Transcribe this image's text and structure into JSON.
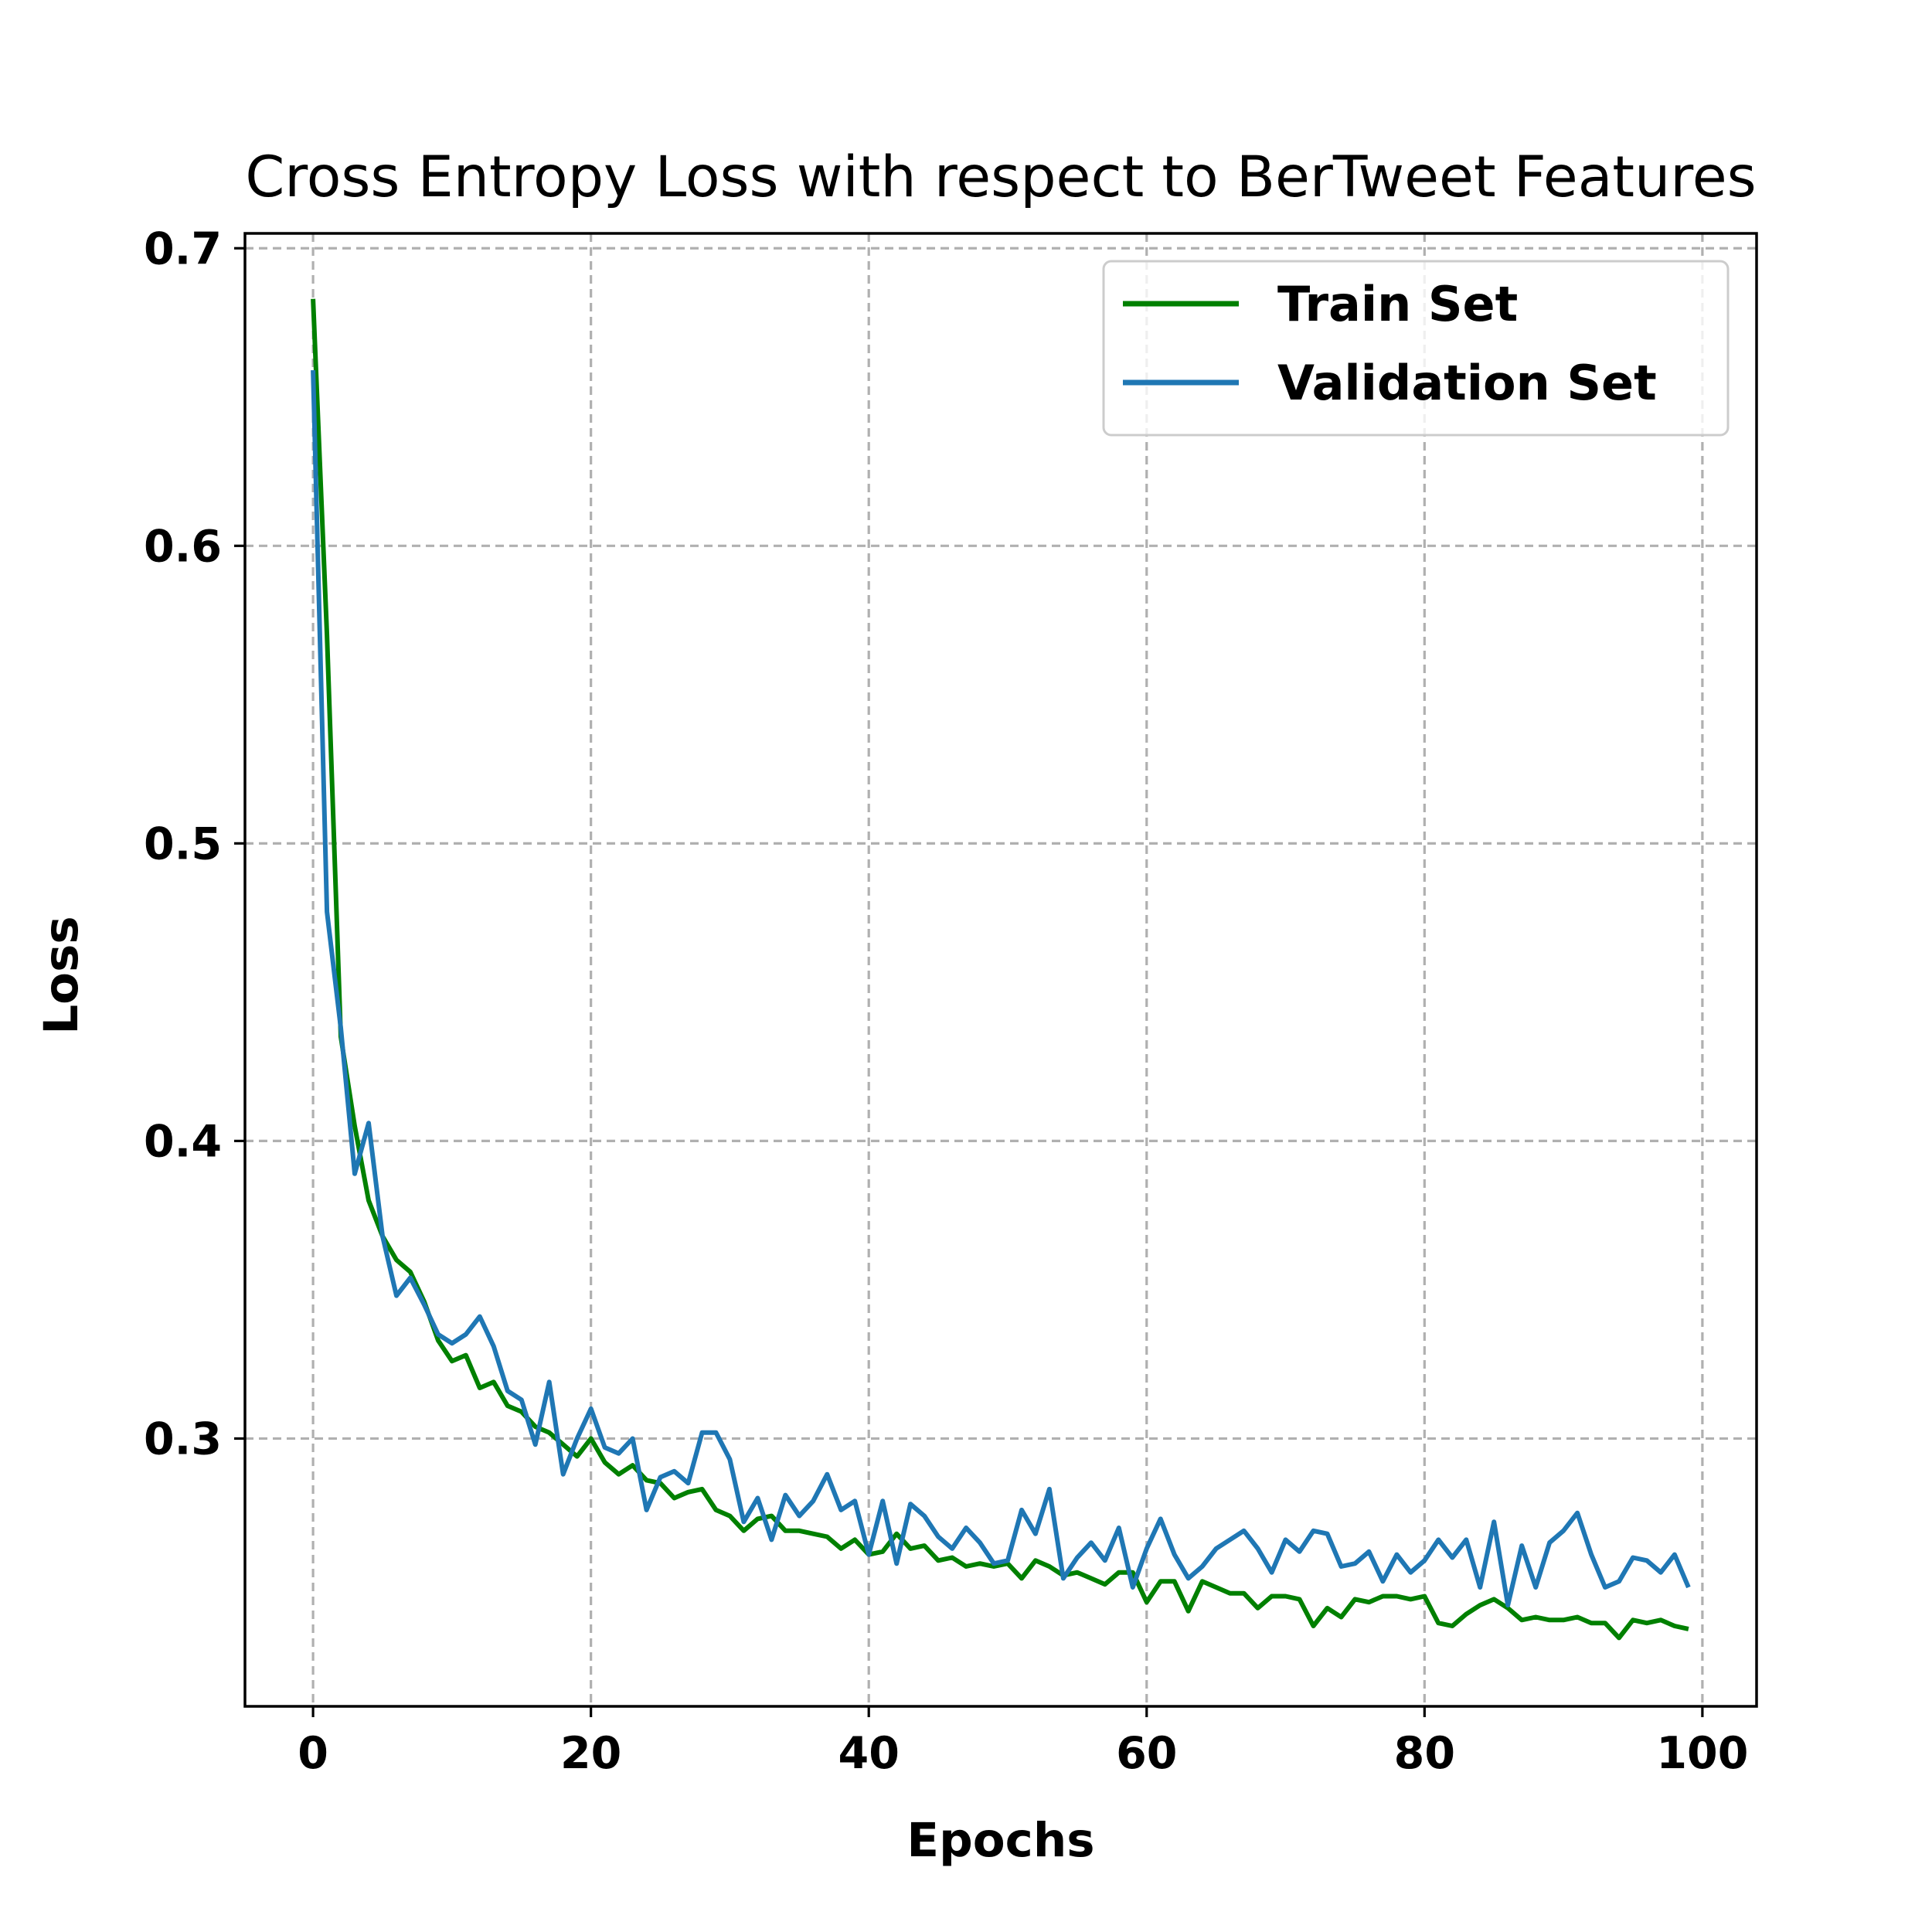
{
  "chart_data": {
    "type": "line",
    "title": "Cross Entropy Loss with respect to BerTweet Features",
    "xlabel": "Epochs",
    "ylabel": "Loss",
    "xlim": [
      -4.9,
      103.9
    ],
    "ylim": [
      0.21,
      0.705
    ],
    "xticks": [
      0,
      20,
      40,
      60,
      80,
      100
    ],
    "yticks": [
      0.3,
      0.4,
      0.5,
      0.6,
      0.7
    ],
    "xtick_labels": [
      "0",
      "20",
      "40",
      "60",
      "80",
      "100"
    ],
    "ytick_labels": [
      "0.3",
      "0.4",
      "0.5",
      "0.6",
      "0.7"
    ],
    "grid": true,
    "legend_position": "top-right",
    "series": [
      {
        "name": "Train Set",
        "color": "#008000",
        "values": [
          0.683,
          0.57,
          0.435,
          0.405,
          0.38,
          0.368,
          0.36,
          0.356,
          0.346,
          0.333,
          0.326,
          0.328,
          0.317,
          0.319,
          0.311,
          0.309,
          0.304,
          0.302,
          0.298,
          0.294,
          0.3,
          0.292,
          0.288,
          0.291,
          0.286,
          0.285,
          0.28,
          0.282,
          0.283,
          0.276,
          0.274,
          0.269,
          0.273,
          0.274,
          0.269,
          0.269,
          0.268,
          0.267,
          0.263,
          0.266,
          0.261,
          0.262,
          0.268,
          0.263,
          0.264,
          0.259,
          0.26,
          0.257,
          0.258,
          0.257,
          0.258,
          0.253,
          0.259,
          0.257,
          0.254,
          0.255,
          0.253,
          0.251,
          0.255,
          0.255,
          0.245,
          0.252,
          0.252,
          0.242,
          0.252,
          0.25,
          0.248,
          0.248,
          0.243,
          0.247,
          0.247,
          0.246,
          0.237,
          0.243,
          0.24,
          0.246,
          0.245,
          0.247,
          0.247,
          0.246,
          0.247,
          0.238,
          0.237,
          0.241,
          0.244,
          0.246,
          0.243,
          0.239,
          0.24,
          0.239,
          0.239,
          0.24,
          0.238,
          0.238,
          0.233,
          0.239,
          0.238,
          0.239,
          0.237,
          0.236
        ]
      },
      {
        "name": "Validation Set",
        "color": "#1f77b4",
        "values": [
          0.659,
          0.477,
          0.438,
          0.389,
          0.406,
          0.368,
          0.348,
          0.354,
          0.345,
          0.335,
          0.332,
          0.335,
          0.341,
          0.331,
          0.316,
          0.313,
          0.298,
          0.319,
          0.288,
          0.3,
          0.31,
          0.297,
          0.295,
          0.3,
          0.276,
          0.287,
          0.289,
          0.285,
          0.302,
          0.302,
          0.293,
          0.272,
          0.28,
          0.266,
          0.281,
          0.274,
          0.279,
          0.288,
          0.276,
          0.279,
          0.261,
          0.279,
          0.258,
          0.278,
          0.274,
          0.267,
          0.263,
          0.27,
          0.265,
          0.258,
          0.259,
          0.276,
          0.268,
          0.283,
          0.253,
          0.26,
          0.265,
          0.259,
          0.27,
          0.25,
          0.263,
          0.273,
          0.261,
          0.253,
          0.257,
          0.263,
          0.266,
          0.269,
          0.263,
          0.255,
          0.266,
          0.262,
          0.269,
          0.268,
          0.257,
          0.258,
          0.262,
          0.252,
          0.261,
          0.255,
          0.259,
          0.266,
          0.26,
          0.266,
          0.25,
          0.272,
          0.244,
          0.264,
          0.25,
          0.265,
          0.269,
          0.275,
          0.261,
          0.25,
          0.252,
          0.26,
          0.259,
          0.255,
          0.261,
          0.25
        ]
      }
    ]
  }
}
